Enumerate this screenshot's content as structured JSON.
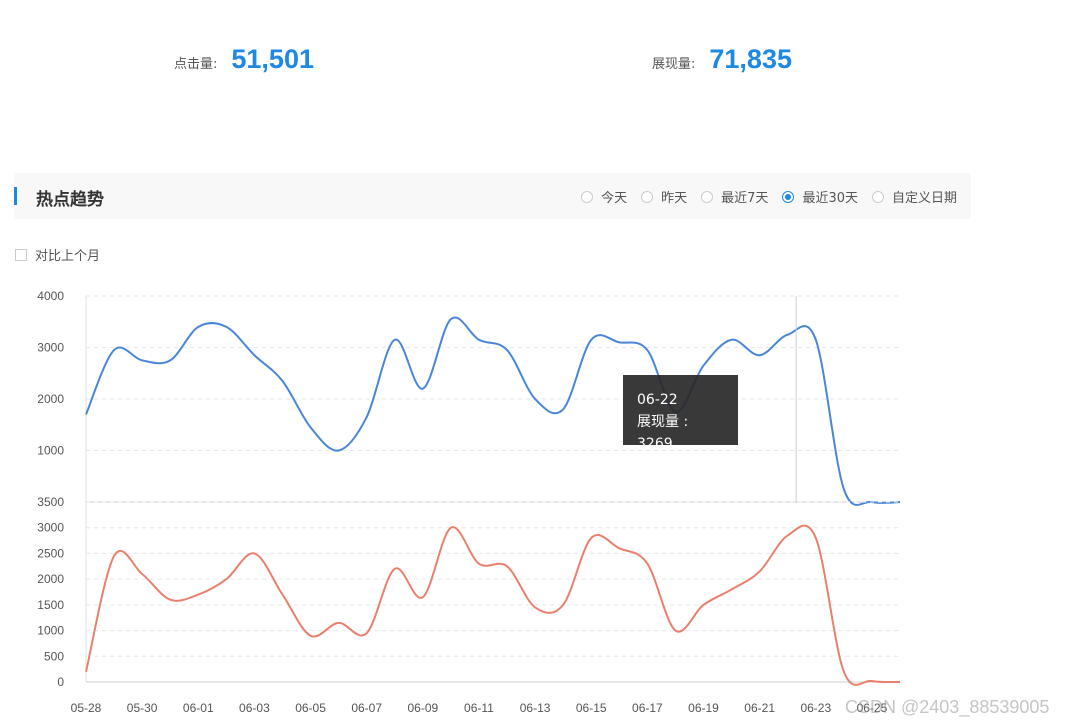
{
  "stats": {
    "clicks": {
      "label": "点击量:",
      "value": "51,501"
    },
    "impressions": {
      "label": "展现量:",
      "value": "71,835"
    }
  },
  "panel": {
    "title": "热点趋势",
    "ranges": [
      {
        "label": "今天",
        "selected": false
      },
      {
        "label": "昨天",
        "selected": false
      },
      {
        "label": "最近7天",
        "selected": false
      },
      {
        "label": "最近30天",
        "selected": true
      },
      {
        "label": "自定义日期",
        "selected": false
      }
    ],
    "compare_label": "对比上个月"
  },
  "tooltip": {
    "date": "06-22",
    "text": "展现量 : 3269"
  },
  "watermark": "CSDN @2403_88539005",
  "colors": {
    "impressions": "#4a86d8",
    "clicks": "#e8806d",
    "accent": "#1e88e5"
  },
  "chart_data": [
    {
      "type": "line",
      "x": [
        "05-28",
        "05-29",
        "05-30",
        "05-31",
        "06-01",
        "06-02",
        "06-03",
        "06-04",
        "06-05",
        "06-06",
        "06-07",
        "06-08",
        "06-09",
        "06-10",
        "06-11",
        "06-12",
        "06-13",
        "06-14",
        "06-15",
        "06-16",
        "06-17",
        "06-18",
        "06-19",
        "06-20",
        "06-21",
        "06-22",
        "06-23",
        "06-24",
        "06-25",
        "06-26"
      ],
      "series": [
        {
          "values": [
            1700,
            2950,
            2750,
            2750,
            3400,
            3400,
            2850,
            2350,
            1450,
            1000,
            1650,
            3150,
            2200,
            3550,
            3150,
            2950,
            2000,
            1800,
            3150,
            3100,
            2950,
            1750,
            2650,
            3150,
            2850,
            3250,
            3150,
            250,
            0,
            0
          ]
        }
      ],
      "ylim": [
        0,
        4000
      ],
      "yticks": [
        1000,
        2000,
        3000,
        4000
      ],
      "grid": true
    },
    {
      "type": "line",
      "x": [
        "05-28",
        "05-29",
        "05-30",
        "05-31",
        "06-01",
        "06-02",
        "06-03",
        "06-04",
        "06-05",
        "06-06",
        "06-07",
        "06-08",
        "06-09",
        "06-10",
        "06-11",
        "06-12",
        "06-13",
        "06-14",
        "06-15",
        "06-16",
        "06-17",
        "06-18",
        "06-19",
        "06-20",
        "06-21",
        "06-22",
        "06-23",
        "06-24",
        "06-25",
        "06-26"
      ],
      "series": [
        {
          "values": [
            200,
            2450,
            2100,
            1600,
            1700,
            2000,
            2500,
            1700,
            900,
            1150,
            950,
            2200,
            1650,
            3000,
            2300,
            2250,
            1450,
            1500,
            2800,
            2600,
            2300,
            1000,
            1500,
            1800,
            2150,
            2850,
            2800,
            200,
            20,
            0
          ]
        }
      ],
      "ylim": [
        0,
        3500
      ],
      "yticks": [
        0,
        500,
        1000,
        1500,
        2000,
        2500,
        3000,
        3500
      ],
      "xticks": [
        "05-28",
        "05-30",
        "06-01",
        "06-03",
        "06-05",
        "06-07",
        "06-09",
        "06-11",
        "06-13",
        "06-15",
        "06-17",
        "06-19",
        "06-21",
        "06-23",
        "06-25"
      ],
      "grid": true
    }
  ]
}
